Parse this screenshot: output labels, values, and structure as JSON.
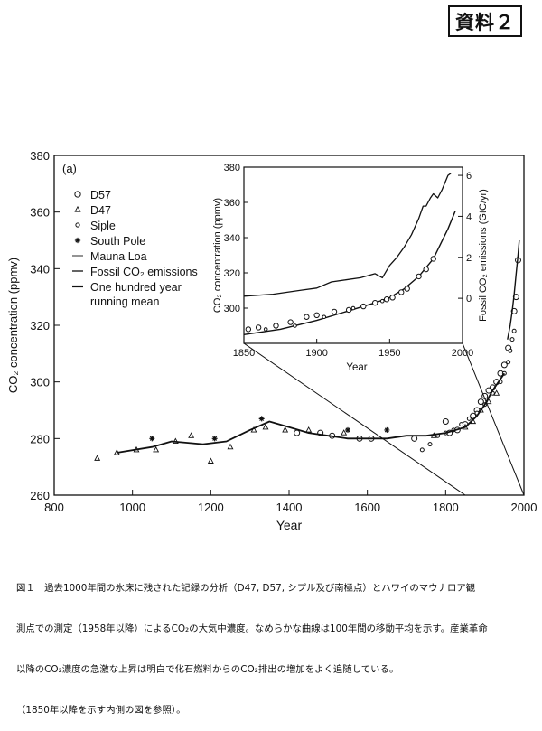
{
  "document_tag": "資料２",
  "caption": {
    "lines": [
      "図１　過去1000年間の氷床に残された記録の分析（D47, D57, シプル及び南極点）とハワイのマウナロア観",
      "測点での測定（1958年以降）によるCO₂の大気中濃度。なめらかな曲線は100年間の移動平均を示す。産業革命",
      "以降のCO₂濃度の急激な上昇は明白で化石燃料からのCO₂排出の増加をよく追随している。",
      "（1850年以降を示す内側の図を参照）。"
    ]
  },
  "chart_data": [
    {
      "id": "main",
      "type": "scatter",
      "panel_label": "(a)",
      "xlabel": "Year",
      "ylabel": "CO₂ concentration (ppmv)",
      "xlim": [
        800,
        2000
      ],
      "ylim": [
        260,
        380
      ],
      "x_ticks": [
        800,
        1000,
        1200,
        1400,
        1600,
        1800,
        2000
      ],
      "y_ticks": [
        260,
        280,
        300,
        320,
        340,
        360,
        380
      ],
      "legend": [
        {
          "label": "D57",
          "marker": "circle"
        },
        {
          "label": "D47",
          "marker": "triangle"
        },
        {
          "label": "Siple",
          "marker": "small-circle"
        },
        {
          "label": "South Pole",
          "marker": "asterisk"
        },
        {
          "label": "Mauna Loa",
          "marker": "thin-line"
        },
        {
          "label": "Fossil CO₂ emissions",
          "marker": "line"
        },
        {
          "label": "One hundred year running mean",
          "marker": "thick-line",
          "lines": [
            "One hundred year",
            "running mean"
          ]
        }
      ],
      "series": [
        {
          "name": "D57",
          "marker": "circle",
          "points": [
            [
              1420,
              282
            ],
            [
              1480,
              282
            ],
            [
              1510,
              281
            ],
            [
              1580,
              280
            ],
            [
              1610,
              280
            ],
            [
              1720,
              280
            ],
            [
              1800,
              286
            ],
            [
              1810,
              282
            ],
            [
              1830,
              283
            ],
            [
              1850,
              285
            ],
            [
              1870,
              288
            ],
            [
              1880,
              290
            ],
            [
              1890,
              293
            ],
            [
              1900,
              295
            ],
            [
              1910,
              297
            ],
            [
              1920,
              298
            ],
            [
              1930,
              300
            ],
            [
              1940,
              303
            ],
            [
              1950,
              306
            ],
            [
              1960,
              312
            ],
            [
              1975,
              325
            ],
            [
              1980,
              330
            ],
            [
              1985,
              343
            ]
          ]
        },
        {
          "name": "D47",
          "marker": "triangle",
          "points": [
            [
              910,
              273
            ],
            [
              960,
              275
            ],
            [
              1010,
              276
            ],
            [
              1060,
              276
            ],
            [
              1110,
              279
            ],
            [
              1150,
              281
            ],
            [
              1200,
              272
            ],
            [
              1250,
              277
            ],
            [
              1310,
              283
            ],
            [
              1340,
              284
            ],
            [
              1390,
              283
            ],
            [
              1450,
              283
            ],
            [
              1540,
              282
            ],
            [
              1770,
              281
            ],
            [
              1850,
              284
            ],
            [
              1870,
              286
            ],
            [
              1890,
              290
            ],
            [
              1910,
              293
            ],
            [
              1930,
              296
            ]
          ]
        },
        {
          "name": "Siple",
          "marker": "small-circle",
          "points": [
            [
              1740,
              276
            ],
            [
              1760,
              278
            ],
            [
              1780,
              281
            ],
            [
              1800,
              282
            ],
            [
              1820,
              283
            ],
            [
              1840,
              285
            ],
            [
              1860,
              287
            ],
            [
              1880,
              289
            ],
            [
              1900,
              292
            ],
            [
              1920,
              296
            ],
            [
              1940,
              300
            ],
            [
              1950,
              303
            ],
            [
              1960,
              307
            ],
            [
              1965,
              311
            ],
            [
              1970,
              315
            ],
            [
              1975,
              318
            ]
          ]
        },
        {
          "name": "South Pole",
          "marker": "asterisk",
          "points": [
            [
              1050,
              280
            ],
            [
              1210,
              280
            ],
            [
              1330,
              287
            ],
            [
              1550,
              283
            ],
            [
              1650,
              283
            ]
          ]
        },
        {
          "name": "One hundred year running mean",
          "style": "thick-line",
          "points": [
            [
              960,
              275
            ],
            [
              1050,
              277
            ],
            [
              1100,
              279
            ],
            [
              1180,
              278
            ],
            [
              1240,
              279
            ],
            [
              1300,
              283
            ],
            [
              1350,
              286
            ],
            [
              1400,
              284
            ],
            [
              1450,
              282
            ],
            [
              1500,
              281
            ],
            [
              1550,
              280
            ],
            [
              1600,
              280
            ],
            [
              1650,
              280
            ],
            [
              1700,
              281
            ],
            [
              1750,
              281
            ],
            [
              1800,
              282
            ],
            [
              1850,
              284
            ],
            [
              1880,
              288
            ],
            [
              1900,
              292
            ],
            [
              1920,
              297
            ],
            [
              1940,
              301
            ],
            [
              1950,
              303
            ]
          ]
        },
        {
          "name": "Mauna Loa",
          "style": "thin-line",
          "points": [
            [
              1958,
              315
            ],
            [
              1965,
              320
            ],
            [
              1970,
              325
            ],
            [
              1975,
              331
            ],
            [
              1980,
              338
            ],
            [
              1985,
              345
            ],
            [
              1988,
              350
            ]
          ]
        }
      ]
    },
    {
      "id": "inset",
      "type": "line",
      "xlabel": "Year",
      "ylabel": "CO₂ concentration (ppmv)",
      "y2label": "Fossil CO₂ emissions (GtC/yr)",
      "xlim": [
        1850,
        2000
      ],
      "ylim": [
        280,
        380
      ],
      "y2lim": [
        -2.2,
        6.4
      ],
      "x_ticks": [
        1850,
        1900,
        1950,
        2000
      ],
      "y_ticks": [
        300,
        320,
        340,
        360,
        380
      ],
      "y2_ticks": [
        0,
        2,
        4,
        6
      ],
      "series": [
        {
          "name": "Fossil CO₂ emissions",
          "axis": "right",
          "style": "jagged-line",
          "points": [
            [
              1850,
              0.1
            ],
            [
              1870,
              0.2
            ],
            [
              1890,
              0.4
            ],
            [
              1900,
              0.5
            ],
            [
              1910,
              0.8
            ],
            [
              1920,
              0.9
            ],
            [
              1930,
              1.0
            ],
            [
              1940,
              1.2
            ],
            [
              1945,
              1.0
            ],
            [
              1950,
              1.6
            ],
            [
              1955,
              2.0
            ],
            [
              1960,
              2.5
            ],
            [
              1965,
              3.1
            ],
            [
              1970,
              3.9
            ],
            [
              1973,
              4.5
            ],
            [
              1975,
              4.5
            ],
            [
              1978,
              4.9
            ],
            [
              1980,
              5.1
            ],
            [
              1983,
              4.9
            ],
            [
              1986,
              5.3
            ],
            [
              1990,
              6.0
            ],
            [
              1992,
              6.1
            ]
          ]
        },
        {
          "name": "One hundred year running mean",
          "axis": "left",
          "style": "line",
          "points": [
            [
              1850,
              285
            ],
            [
              1875,
              288
            ],
            [
              1900,
              293
            ],
            [
              1920,
              298
            ],
            [
              1940,
              303
            ],
            [
              1950,
              306
            ],
            [
              1960,
              311
            ],
            [
              1970,
              318
            ],
            [
              1980,
              328
            ],
            [
              1990,
              345
            ],
            [
              1995,
              355
            ]
          ]
        },
        {
          "name": "D57",
          "axis": "left",
          "marker": "circle",
          "points": [
            [
              1853,
              288
            ],
            [
              1860,
              289
            ],
            [
              1872,
              290
            ],
            [
              1882,
              292
            ],
            [
              1893,
              295
            ],
            [
              1900,
              296
            ],
            [
              1912,
              298
            ],
            [
              1922,
              299
            ],
            [
              1932,
              301
            ],
            [
              1940,
              303
            ],
            [
              1948,
              305
            ],
            [
              1952,
              306
            ],
            [
              1958,
              309
            ],
            [
              1962,
              311
            ],
            [
              1970,
              318
            ],
            [
              1975,
              322
            ],
            [
              1980,
              328
            ]
          ]
        },
        {
          "name": "Siple",
          "axis": "left",
          "marker": "small-circle",
          "points": [
            [
              1865,
              288
            ],
            [
              1885,
              290
            ],
            [
              1905,
              295
            ],
            [
              1925,
              300
            ],
            [
              1945,
              304
            ]
          ]
        }
      ]
    }
  ]
}
